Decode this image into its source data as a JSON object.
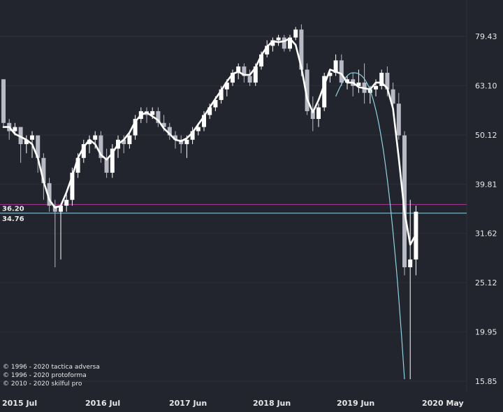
{
  "chart_data": {
    "type": "candlestick",
    "y_scale": "log",
    "y_ticks": [
      "79.43",
      "63.10",
      "50.12",
      "39.81",
      "31.62",
      "25.12",
      "19.95",
      "15.85"
    ],
    "x_ticks": [
      "2015 Jul",
      "2016 Jul",
      "2017 Jun",
      "2018 Jun",
      "2019 Jun",
      "2020 May"
    ],
    "levels": [
      {
        "label": "36.20",
        "value": 36.2,
        "color": "#b0359a"
      },
      {
        "label": "34.76",
        "value": 34.76,
        "color": "#8fd3e0"
      }
    ],
    "candles": [
      [
        65,
        65,
        52,
        53
      ],
      [
        53,
        54,
        49,
        51
      ],
      [
        51,
        53,
        50,
        52
      ],
      [
        52,
        52,
        44,
        48
      ],
      [
        48,
        50,
        46,
        49
      ],
      [
        49,
        51,
        45,
        50
      ],
      [
        50,
        50,
        42,
        45
      ],
      [
        45,
        46,
        37,
        40
      ],
      [
        40,
        41,
        35,
        36
      ],
      [
        36,
        37,
        27,
        35
      ],
      [
        35,
        36,
        28,
        36
      ],
      [
        36,
        38,
        35,
        37
      ],
      [
        37,
        43,
        36,
        42
      ],
      [
        42,
        46,
        41,
        45
      ],
      [
        45,
        49,
        44,
        48
      ],
      [
        48,
        50,
        46,
        49
      ],
      [
        49,
        51,
        47,
        50
      ],
      [
        50,
        51,
        44,
        45
      ],
      [
        45,
        47,
        41,
        42
      ],
      [
        42,
        48,
        41,
        47
      ],
      [
        47,
        50,
        45,
        49
      ],
      [
        49,
        50,
        46,
        48
      ],
      [
        48,
        51,
        47,
        50
      ],
      [
        50,
        55,
        49,
        54
      ],
      [
        54,
        57,
        53,
        56
      ],
      [
        56,
        57,
        53,
        55
      ],
      [
        55,
        57,
        54,
        56
      ],
      [
        56,
        57,
        52,
        53
      ],
      [
        53,
        55,
        51,
        52
      ],
      [
        52,
        53,
        49,
        50
      ],
      [
        50,
        51,
        47,
        49
      ],
      [
        49,
        50,
        46,
        48
      ],
      [
        48,
        50,
        45,
        49
      ],
      [
        49,
        52,
        48,
        51
      ],
      [
        51,
        53,
        50,
        52
      ],
      [
        52,
        56,
        51,
        55
      ],
      [
        55,
        58,
        54,
        57
      ],
      [
        57,
        60,
        56,
        59
      ],
      [
        59,
        63,
        58,
        62
      ],
      [
        62,
        65,
        60,
        64
      ],
      [
        64,
        68,
        63,
        67
      ],
      [
        67,
        70,
        65,
        69
      ],
      [
        69,
        70,
        64,
        66
      ],
      [
        66,
        68,
        63,
        64
      ],
      [
        64,
        70,
        63,
        69
      ],
      [
        69,
        74,
        68,
        73
      ],
      [
        73,
        78,
        72,
        76
      ],
      [
        76,
        79,
        74,
        78
      ],
      [
        78,
        80,
        76,
        79
      ],
      [
        79,
        80,
        74,
        75
      ],
      [
        75,
        80,
        74,
        79
      ],
      [
        79,
        83,
        78,
        82
      ],
      [
        82,
        84,
        66,
        68
      ],
      [
        68,
        70,
        55,
        56
      ],
      [
        56,
        60,
        51,
        54
      ],
      [
        54,
        58,
        52,
        57
      ],
      [
        57,
        67,
        56,
        66
      ],
      [
        66,
        68,
        64,
        67
      ],
      [
        67,
        73,
        66,
        71
      ],
      [
        71,
        73,
        63,
        64
      ],
      [
        64,
        66,
        62,
        65
      ],
      [
        65,
        67,
        60,
        63
      ],
      [
        63,
        68,
        61,
        64
      ],
      [
        64,
        70,
        58,
        61
      ],
      [
        61,
        63,
        58,
        62
      ],
      [
        62,
        65,
        60,
        63
      ],
      [
        63,
        68,
        62,
        67
      ],
      [
        67,
        69,
        60,
        62
      ],
      [
        62,
        64,
        57,
        58
      ],
      [
        58,
        61,
        49,
        50
      ],
      [
        50,
        51,
        26,
        27
      ],
      [
        27,
        37,
        16,
        28
      ],
      [
        28,
        36,
        26,
        35
      ]
    ]
  },
  "copyrights": [
    "© 1996 - 2020 tactica adversa",
    "© 1996 - 2020 protoforma",
    "© 2010 - 2020 skilful pro"
  ]
}
